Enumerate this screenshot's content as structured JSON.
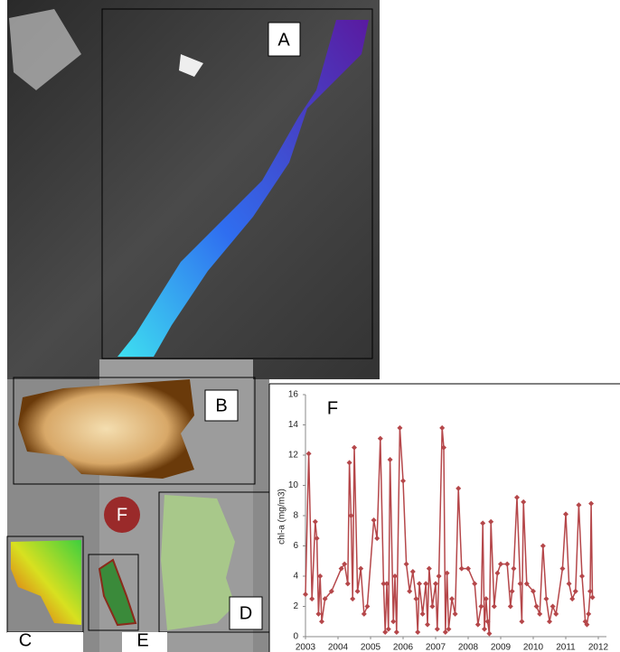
{
  "panel_labels": [
    "A",
    "B",
    "C",
    "D",
    "E",
    "F"
  ],
  "chart_data": {
    "type": "line",
    "title": "F",
    "y_label": "chl-a (mg/m3)",
    "color": "#b5474a",
    "x": [
      2003.0,
      2003.1,
      2003.2,
      2003.3,
      2003.35,
      2003.4,
      2003.45,
      2003.5,
      2003.6,
      2003.8,
      2004.1,
      2004.2,
      2004.3,
      2004.35,
      2004.4,
      2004.45,
      2004.5,
      2004.6,
      2004.7,
      2004.8,
      2004.9,
      2005.1,
      2005.2,
      2005.3,
      2005.4,
      2005.45,
      2005.5,
      2005.55,
      2005.6,
      2005.7,
      2005.75,
      2005.8,
      2005.9,
      2006.0,
      2006.1,
      2006.2,
      2006.3,
      2006.4,
      2006.45,
      2006.5,
      2006.6,
      2006.7,
      2006.75,
      2006.8,
      2006.9,
      2007.0,
      2007.05,
      2007.1,
      2007.2,
      2007.25,
      2007.3,
      2007.35,
      2007.4,
      2007.5,
      2007.6,
      2007.7,
      2007.8,
      2008.0,
      2008.2,
      2008.3,
      2008.4,
      2008.45,
      2008.5,
      2008.55,
      2008.6,
      2008.65,
      2008.7,
      2008.8,
      2008.9,
      2009.0,
      2009.2,
      2009.3,
      2009.35,
      2009.4,
      2009.5,
      2009.6,
      2009.65,
      2009.7,
      2009.8,
      2010.0,
      2010.1,
      2010.2,
      2010.3,
      2010.4,
      2010.5,
      2010.6,
      2010.7,
      2010.9,
      2011.0,
      2011.1,
      2011.2,
      2011.3,
      2011.4,
      2011.5,
      2011.6,
      2011.65,
      2011.7,
      2011.75,
      2011.78,
      2011.82
    ],
    "values": [
      2.8,
      12.1,
      2.5,
      7.6,
      6.5,
      1.5,
      4.0,
      1.0,
      2.5,
      3.0,
      4.5,
      4.8,
      3.5,
      11.5,
      8.0,
      2.5,
      12.5,
      3.0,
      4.5,
      1.5,
      2.0,
      7.7,
      6.5,
      13.1,
      3.5,
      0.3,
      3.5,
      0.5,
      11.7,
      1.0,
      4.0,
      0.3,
      13.8,
      10.3,
      4.8,
      3.0,
      4.3,
      2.5,
      0.3,
      3.5,
      1.5,
      3.5,
      0.8,
      4.5,
      2.0,
      3.5,
      0.5,
      4.0,
      13.8,
      12.5,
      0.3,
      4.2,
      0.5,
      2.5,
      1.5,
      9.8,
      4.5,
      4.5,
      3.5,
      0.8,
      2.0,
      7.5,
      0.5,
      2.5,
      1.0,
      0.2,
      7.6,
      2.0,
      4.2,
      4.8,
      4.8,
      2.0,
      3.0,
      4.5,
      9.2,
      3.5,
      1.0,
      8.9,
      3.5,
      3.0,
      2.0,
      1.5,
      6.0,
      2.5,
      1.0,
      2.0,
      1.5,
      4.5,
      8.1,
      3.5,
      2.5,
      3.0,
      8.7,
      4.0,
      1.0,
      0.8,
      1.5,
      3.0,
      8.8,
      2.6
    ],
    "xlim": [
      2003,
      2012.25
    ],
    "xticks": [
      2003,
      2004,
      2005,
      2006,
      2007,
      2008,
      2009,
      2010,
      2011,
      2012
    ],
    "ylim": [
      0,
      16
    ],
    "yticks": [
      0,
      2,
      4,
      6,
      8,
      10,
      12,
      14,
      16
    ]
  }
}
